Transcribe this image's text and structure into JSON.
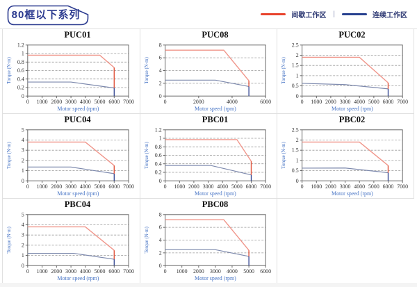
{
  "header": {
    "badge": "80框以下系列"
  },
  "legend": {
    "intermittent_label": "间歇工作区",
    "separator": "|",
    "continuous_label": "连续工作区"
  },
  "axis": {
    "xlabel": "Motor speed (rpm)",
    "ylabel": "Torque (N·m)"
  },
  "colors": {
    "legend_intermittent": "#e8432c",
    "legend_continuous": "#27418f",
    "intermittent": "#f0958a",
    "intermittent_drop": "#e0523a",
    "continuous": "#7d89ad",
    "continuous_drop": "#2b3f8c",
    "plot_frame": "#666666",
    "gridline": "#999999",
    "tick_text": "#333333",
    "axis_label": "#4472c4",
    "badge": "#2b3a8f",
    "cell_border": "#e0e0e0"
  },
  "chart_data": [
    {
      "type": "line",
      "title": "PUC01",
      "xticks": [
        "0",
        "1000",
        "2000",
        "3000",
        "4000",
        "5000",
        "6000",
        "7000"
      ],
      "yticks": [
        "0",
        "0.2",
        "0.4",
        "0.6",
        "0.8",
        "1",
        "1.2"
      ],
      "intermittent": [
        [
          0,
          0.96
        ],
        [
          5000,
          0.96
        ],
        [
          6000,
          0.67
        ]
      ],
      "intermittent_drop": [
        [
          6000,
          0.67
        ],
        [
          6000,
          0.19
        ]
      ],
      "continuous": [
        [
          0,
          0.33
        ],
        [
          3000,
          0.33
        ],
        [
          6000,
          0.19
        ]
      ],
      "continuous_drop": [
        [
          6000,
          0.19
        ],
        [
          6000,
          0
        ]
      ]
    },
    {
      "type": "line",
      "title": "PUC08",
      "xticks": [
        "0",
        "2000",
        "4000",
        "6000"
      ],
      "yticks": [
        "0",
        "2",
        "4",
        "6",
        "8"
      ],
      "intermittent": [
        [
          0,
          7.2
        ],
        [
          3500,
          7.2
        ],
        [
          5000,
          2.4
        ]
      ],
      "intermittent_drop": [
        [
          5000,
          2.4
        ],
        [
          5000,
          1.5
        ]
      ],
      "continuous": [
        [
          0,
          2.5
        ],
        [
          3000,
          2.5
        ],
        [
          5000,
          1.5
        ]
      ],
      "continuous_drop": [
        [
          5000,
          1.5
        ],
        [
          5000,
          0
        ]
      ]
    },
    {
      "type": "line",
      "title": "PUC02",
      "xticks": [
        "0",
        "1000",
        "2000",
        "3000",
        "4000",
        "5000",
        "6000",
        "7000"
      ],
      "yticks": [
        "0",
        "0.5",
        "1",
        "1.5",
        "2",
        "2.5"
      ],
      "intermittent": [
        [
          0,
          1.9
        ],
        [
          4000,
          1.9
        ],
        [
          6000,
          0.65
        ]
      ],
      "intermittent_drop": [
        [
          6000,
          0.65
        ],
        [
          6000,
          0.35
        ]
      ],
      "continuous": [
        [
          0,
          0.62
        ],
        [
          3000,
          0.56
        ],
        [
          6000,
          0.35
        ]
      ],
      "continuous_drop": [
        [
          6000,
          0.35
        ],
        [
          6000,
          0
        ]
      ]
    },
    {
      "type": "line",
      "title": "PUC04",
      "xticks": [
        "0",
        "1000",
        "2000",
        "3000",
        "4000",
        "5000",
        "6000",
        "7000"
      ],
      "yticks": [
        "0",
        "1",
        "2",
        "3",
        "4",
        "5"
      ],
      "intermittent": [
        [
          0,
          3.8
        ],
        [
          4000,
          3.8
        ],
        [
          6000,
          1.5
        ]
      ],
      "intermittent_drop": [
        [
          6000,
          1.5
        ],
        [
          6000,
          0.7
        ]
      ],
      "continuous": [
        [
          0,
          1.35
        ],
        [
          3000,
          1.35
        ],
        [
          6000,
          0.7
        ]
      ],
      "continuous_drop": [
        [
          6000,
          0.7
        ],
        [
          6000,
          0
        ]
      ]
    },
    {
      "type": "line",
      "title": "PBC01",
      "xticks": [
        "0",
        "1000",
        "2000",
        "3000",
        "4000",
        "5000",
        "6000",
        "7000"
      ],
      "yticks": [
        "0",
        "0.2",
        "0.4",
        "0.6",
        "0.8",
        "1",
        "1.2"
      ],
      "intermittent": [
        [
          0,
          0.97
        ],
        [
          5000,
          0.97
        ],
        [
          6000,
          0.46
        ]
      ],
      "intermittent_drop": [
        [
          6000,
          0.46
        ],
        [
          6000,
          0.14
        ]
      ],
      "continuous": [
        [
          0,
          0.36
        ],
        [
          3200,
          0.36
        ],
        [
          6000,
          0.14
        ]
      ],
      "continuous_drop": [
        [
          6000,
          0.14
        ],
        [
          6000,
          0
        ]
      ]
    },
    {
      "type": "line",
      "title": "PBC02",
      "xticks": [
        "0",
        "1000",
        "2000",
        "3000",
        "4000",
        "5000",
        "6000",
        "7000"
      ],
      "yticks": [
        "0",
        "0.5",
        "1",
        "1.5",
        "2",
        "2.5"
      ],
      "intermittent": [
        [
          0,
          1.9
        ],
        [
          4000,
          1.9
        ],
        [
          6000,
          0.75
        ]
      ],
      "intermittent_drop": [
        [
          6000,
          0.75
        ],
        [
          6000,
          0.4
        ]
      ],
      "continuous": [
        [
          0,
          0.62
        ],
        [
          3000,
          0.63
        ],
        [
          6000,
          0.4
        ]
      ],
      "continuous_drop": [
        [
          6000,
          0.4
        ],
        [
          6000,
          0
        ]
      ]
    },
    {
      "type": "line",
      "title": "PBC04",
      "xticks": [
        "0",
        "1000",
        "2000",
        "3000",
        "4000",
        "5000",
        "6000",
        "7000"
      ],
      "yticks": [
        "0",
        "1",
        "2",
        "3",
        "4",
        "5"
      ],
      "intermittent": [
        [
          0,
          3.8
        ],
        [
          4000,
          3.8
        ],
        [
          6000,
          1.5
        ]
      ],
      "intermittent_drop": [
        [
          6000,
          1.5
        ],
        [
          6000,
          0.62
        ]
      ],
      "continuous": [
        [
          0,
          1.2
        ],
        [
          3200,
          1.2
        ],
        [
          6000,
          0.62
        ]
      ],
      "continuous_drop": [
        [
          6000,
          0.62
        ],
        [
          6000,
          0
        ]
      ]
    },
    {
      "type": "line",
      "title": "PBC08",
      "xticks": [
        "0",
        "1000",
        "2000",
        "3000",
        "4000",
        "5000",
        "6000"
      ],
      "yticks": [
        "0",
        "2",
        "4",
        "6",
        "8"
      ],
      "intermittent": [
        [
          0,
          7.2
        ],
        [
          3500,
          7.2
        ],
        [
          5000,
          2.4
        ]
      ],
      "intermittent_drop": [
        [
          5000,
          2.4
        ],
        [
          5000,
          1.45
        ]
      ],
      "continuous": [
        [
          0,
          2.5
        ],
        [
          3000,
          2.5
        ],
        [
          5000,
          1.45
        ]
      ],
      "continuous_drop": [
        [
          5000,
          1.45
        ],
        [
          5000,
          0
        ]
      ]
    }
  ]
}
